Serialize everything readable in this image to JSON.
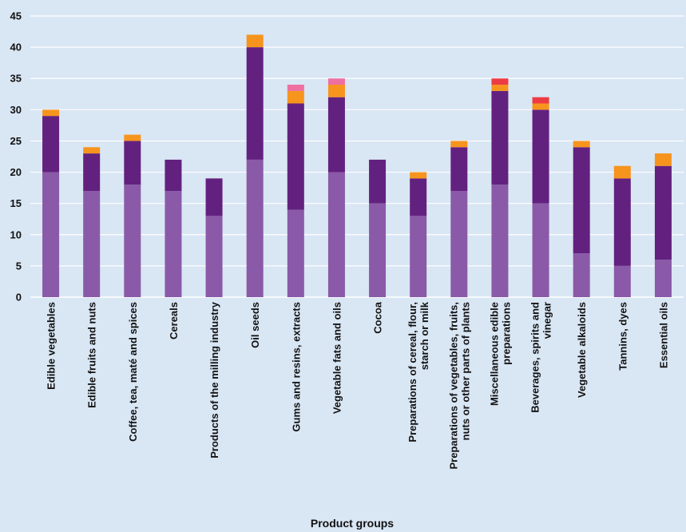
{
  "chart_data": {
    "type": "bar",
    "stacked": true,
    "title": "",
    "xlabel": "Product groups",
    "ylabel": "",
    "ylim": [
      0,
      45
    ],
    "yticks": [
      0,
      5,
      10,
      15,
      20,
      25,
      30,
      35,
      40,
      45
    ],
    "grid": true,
    "legend": "none",
    "categories": [
      [
        "Edible vegetables"
      ],
      [
        "Edible fruits and nuts"
      ],
      [
        "Coffee, tea, maté and spices"
      ],
      [
        "Cereals"
      ],
      [
        "Products of the milling industry"
      ],
      [
        "Oil seeds"
      ],
      [
        "Gums and resins, extracts"
      ],
      [
        "Vegetable fats and oils"
      ],
      [
        "Cocoa"
      ],
      [
        "Preparations of cereal, flour,",
        "starch or milk"
      ],
      [
        "Preparations of vegetables, fruits,",
        "nuts or other parts of  plants"
      ],
      [
        "Miscellaneous edible",
        "preparations"
      ],
      [
        "Beverages, spirits and",
        "vinegar"
      ],
      [
        "Vegetable alkaloids"
      ],
      [
        "Tannins, dyes"
      ],
      [
        "Essential oils"
      ]
    ],
    "series": [
      {
        "color": "#8a5aa8",
        "values": [
          20,
          17,
          18,
          17,
          13,
          22,
          14,
          20,
          15,
          13,
          17,
          18,
          15,
          7,
          5,
          6
        ]
      },
      {
        "color": "#63217f",
        "values": [
          9,
          6,
          7,
          5,
          6,
          18,
          17,
          12,
          7,
          6,
          7,
          15,
          15,
          17,
          14,
          15
        ]
      },
      {
        "color": "#f7941d",
        "values": [
          1,
          1,
          1,
          0,
          0,
          2,
          2,
          2,
          0,
          1,
          1,
          1,
          1,
          1,
          2,
          2
        ]
      },
      {
        "color": "#ed3b43",
        "values": [
          0,
          0,
          0,
          0,
          0,
          0,
          0,
          0,
          0,
          0,
          0,
          1,
          1,
          0,
          0,
          0
        ]
      },
      {
        "color": "#ee6fa0",
        "values": [
          0,
          0,
          0,
          0,
          0,
          0,
          1,
          1,
          0,
          0,
          0,
          0,
          0,
          0,
          0,
          0
        ]
      }
    ]
  }
}
